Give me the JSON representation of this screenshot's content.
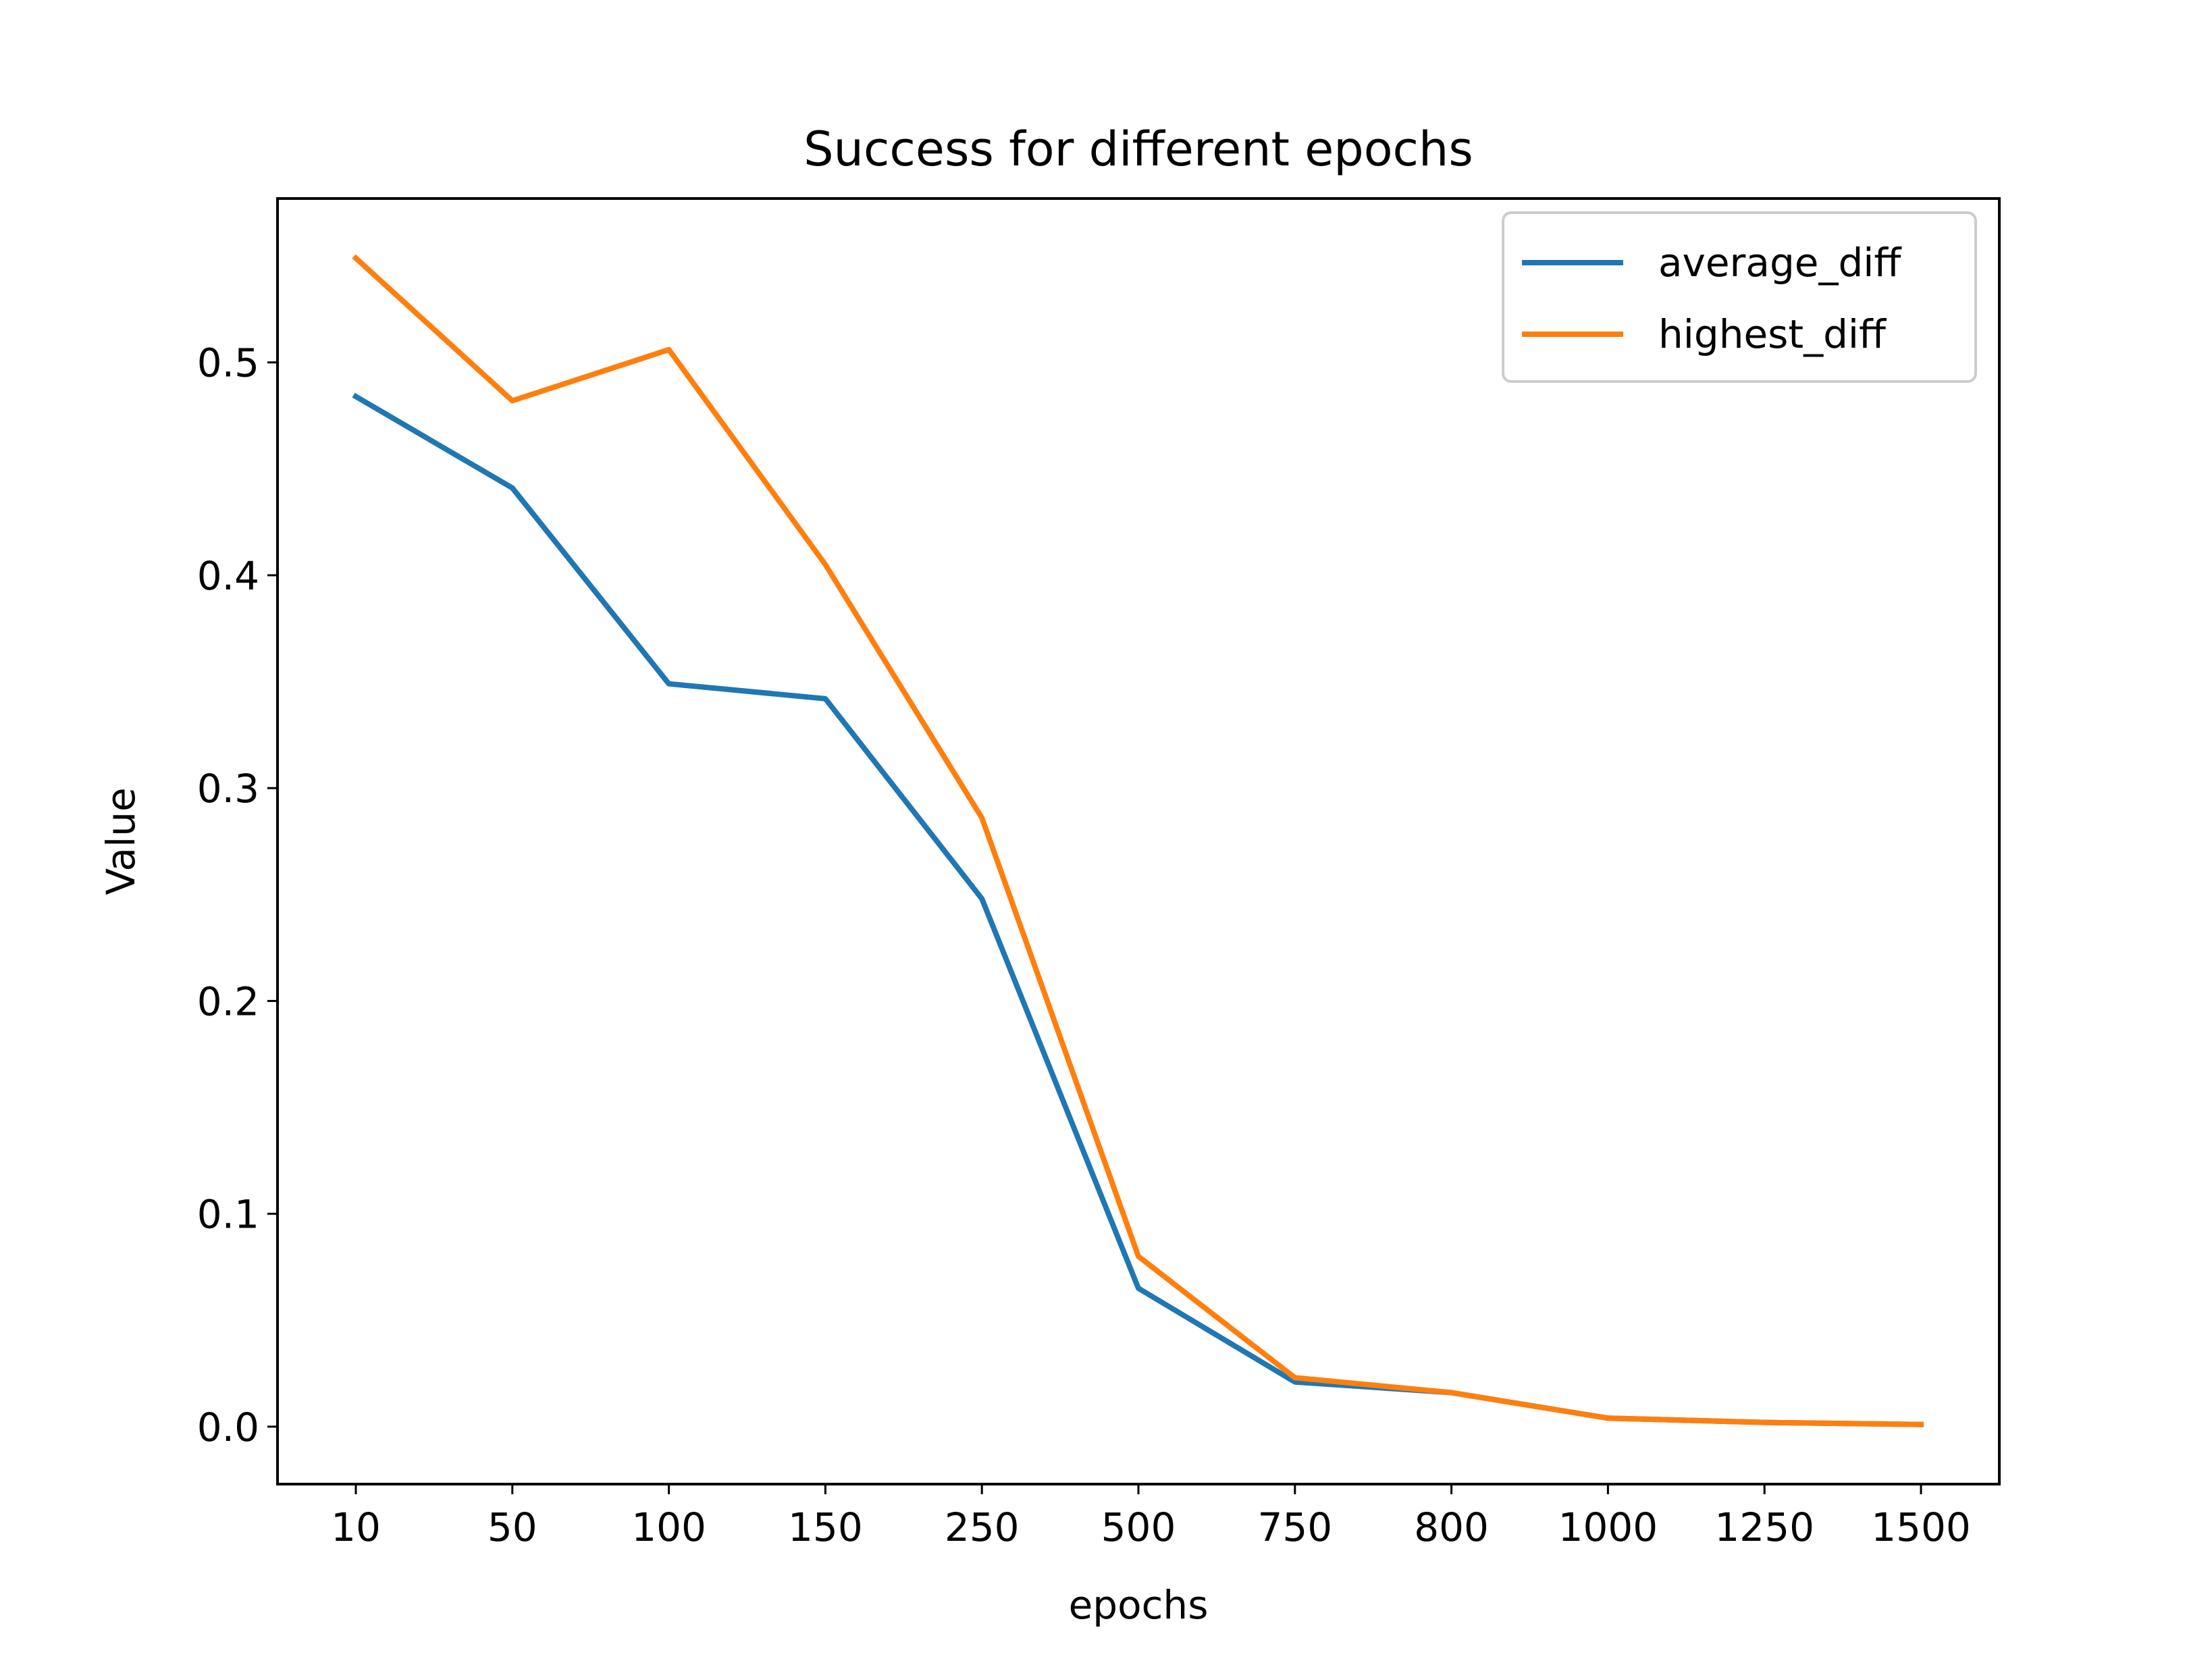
{
  "chart_data": {
    "type": "line",
    "title": "Success for different epochs",
    "xlabel": "epochs",
    "ylabel": "Value",
    "categories": [
      "10",
      "50",
      "100",
      "150",
      "250",
      "500",
      "750",
      "800",
      "1000",
      "1250",
      "1500"
    ],
    "y_ticks": [
      "0.0",
      "0.1",
      "0.2",
      "0.3",
      "0.4",
      "0.5"
    ],
    "ylim": [
      -0.027,
      0.577
    ],
    "grid": false,
    "legend_position": "top-right",
    "series": [
      {
        "name": "average_diff",
        "color": "#1f77b4",
        "values": [
          0.484,
          0.441,
          0.349,
          0.342,
          0.248,
          0.065,
          0.021,
          0.016,
          0.004,
          0.002,
          0.001
        ]
      },
      {
        "name": "highest_diff",
        "color": "#ff7f0e",
        "values": [
          0.549,
          0.482,
          0.506,
          0.405,
          0.286,
          0.08,
          0.023,
          0.016,
          0.004,
          0.002,
          0.001
        ]
      }
    ]
  }
}
